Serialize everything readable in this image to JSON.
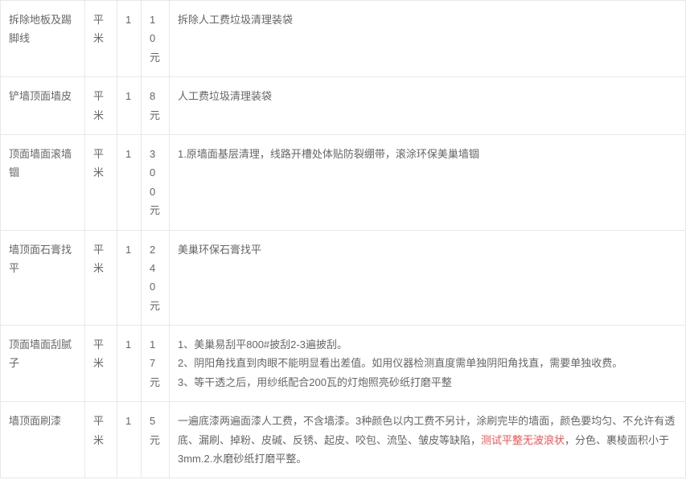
{
  "rows": [
    {
      "name": "拆除地板及踢脚线",
      "unit": "平米",
      "qty": "1",
      "price": "10元",
      "desc_parts": [
        {
          "t": "拆除人工费垃圾清理装袋",
          "h": false
        }
      ]
    },
    {
      "name": "铲墙顶面墙皮",
      "unit": "平米",
      "qty": "1",
      "price": "8元",
      "desc_parts": [
        {
          "t": "人工费垃圾清理装袋",
          "h": false
        }
      ]
    },
    {
      "name": "顶面墙面滚墙锢",
      "unit": "平米",
      "qty": "1",
      "price": "300元",
      "desc_parts": [
        {
          "t": "1.原墙面基层清理，线路开槽处体贴防裂绷带，滚涂环保美巢墙锢",
          "h": false
        }
      ]
    },
    {
      "name": "墙顶面石膏找平",
      "unit": "平米",
      "qty": "1",
      "price": "240元",
      "desc_parts": [
        {
          "t": "美巢环保石膏找平",
          "h": false
        }
      ]
    },
    {
      "name": "顶面墙面刮腻子",
      "unit": "平米",
      "qty": "1",
      "price": "17元",
      "desc_parts": [
        {
          "t": "1、美巢易刮平800#披刮2-3遍披刮。",
          "h": false
        },
        {
          "br": true
        },
        {
          "t": "2、阴阳角找直到肉眼不能明显看出差值。如用仪器检测直度需单独阴阳角找直，需要单独收费。",
          "h": false
        },
        {
          "br": true
        },
        {
          "t": "3、等干透之后，用纱纸配合200瓦的灯炮照亮砂纸打磨平整",
          "h": false
        }
      ]
    },
    {
      "name": "墙顶面刷漆",
      "unit": "平米",
      "qty": "1",
      "price": "5元",
      "desc_parts": [
        {
          "t": "一遍底漆两遍面漆人工费，不含墙漆。3种颜色以内工费不另计，涂刷完毕的墙面，颜色要均匀、不允许有透底、漏刷、掉粉、皮碱、反锈、起皮、咬包、流坠、皱皮等缺陷，",
          "h": false
        },
        {
          "t": "测试平整无波浪状",
          "h": true
        },
        {
          "t": "，分色、裹棱面积小于3mm.2.水磨砂纸打磨平整。",
          "h": false
        }
      ]
    }
  ]
}
